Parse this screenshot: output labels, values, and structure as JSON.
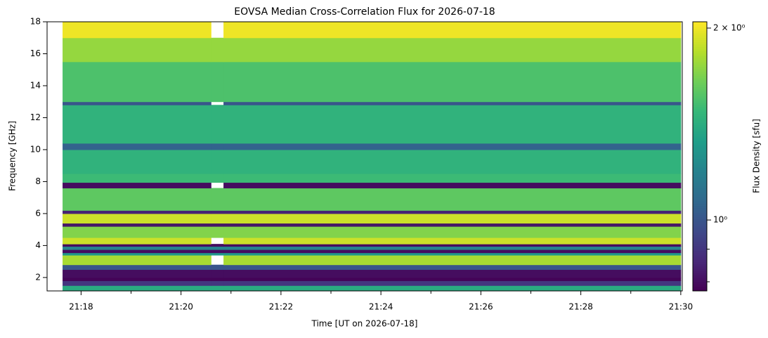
{
  "chart_data": {
    "type": "heatmap",
    "title": "EOVSA Median Cross-Correlation Flux for 2026-07-18",
    "xlabel": "Time [UT on 2026-07-18]",
    "ylabel": "Frequency [GHz]",
    "colorbar_label": "Flux Density [sfu]",
    "colormap": "viridis",
    "color_scale": "log",
    "xlim": [
      1277.32,
      1290.03
    ],
    "ylim": [
      1.16,
      18
    ],
    "clim": [
      0.774,
      2.046
    ],
    "xticks": [
      {
        "value": 1278,
        "label": "21:18"
      },
      {
        "value": 1280,
        "label": "21:20"
      },
      {
        "value": 1282,
        "label": "21:22"
      },
      {
        "value": 1284,
        "label": "21:24"
      },
      {
        "value": 1286,
        "label": "21:26"
      },
      {
        "value": 1288,
        "label": "21:28"
      },
      {
        "value": 1290,
        "label": "21:30"
      }
    ],
    "xminor_ticks": [
      1279,
      1281,
      1283,
      1285,
      1287,
      1289
    ],
    "yticks": [
      2,
      4,
      6,
      8,
      10,
      12,
      14,
      16,
      18
    ],
    "cticks": [
      {
        "value": 2,
        "label": "2 × 10⁰"
      },
      {
        "value": 1,
        "label": "10⁰"
      }
    ],
    "cminor_ticks": [
      0.8,
      0.9
    ],
    "time_bins": [
      1277.63,
      1280.6,
      1280.85,
      1290.0
    ],
    "freq_bins": [
      1.16,
      1.5,
      1.8,
      2.0,
      2.5,
      2.8,
      3.4,
      3.55,
      3.75,
      3.95,
      4.1,
      4.5,
      5.2,
      5.4,
      6.0,
      6.2,
      7.6,
      7.95,
      8.5,
      10.0,
      10.4,
      12.8,
      13.0,
      15.5,
      17.0,
      18.0
    ],
    "values": [
      [
        1.4,
        1.4,
        1.4
      ],
      [
        0.9,
        0.9,
        0.9
      ],
      [
        0.78,
        0.78,
        0.78
      ],
      [
        0.8,
        0.8,
        0.8
      ],
      [
        1.0,
        1.0,
        1.0
      ],
      [
        1.8,
        null,
        1.8
      ],
      [
        1.3,
        1.3,
        1.3
      ],
      [
        0.8,
        0.8,
        0.8
      ],
      [
        1.2,
        1.2,
        1.2
      ],
      [
        0.8,
        0.8,
        0.8
      ],
      [
        1.9,
        null,
        1.9
      ],
      [
        1.7,
        1.7,
        1.7
      ],
      [
        0.82,
        0.82,
        0.82
      ],
      [
        1.9,
        1.9,
        1.9
      ],
      [
        0.85,
        0.85,
        0.85
      ],
      [
        1.6,
        1.6,
        1.6
      ],
      [
        0.8,
        null,
        0.8
      ],
      [
        1.5,
        1.5,
        1.5
      ],
      [
        1.45,
        1.45,
        1.45
      ],
      [
        1.05,
        1.05,
        1.05
      ],
      [
        1.45,
        1.45,
        1.45
      ],
      [
        1.0,
        null,
        1.0
      ],
      [
        1.55,
        1.55,
        1.55
      ],
      [
        1.75,
        1.75,
        1.75
      ],
      [
        2.0,
        null,
        2.0
      ]
    ]
  }
}
